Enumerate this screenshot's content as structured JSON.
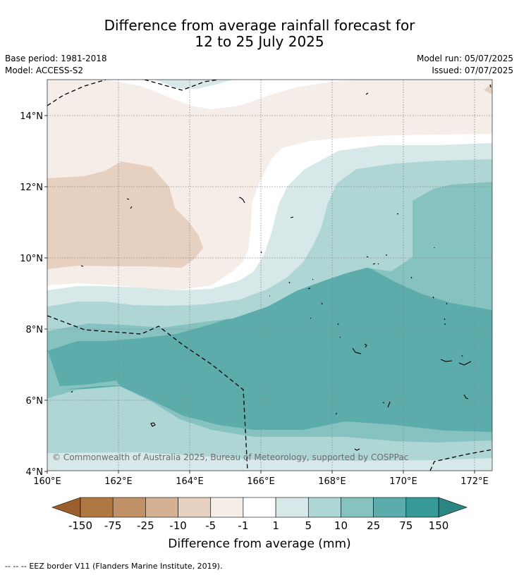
{
  "header": {
    "title_line1": "Difference from average rainfall forecast for",
    "title_line2": "12 to 25 July 2025",
    "base_period": "Base period: 1981-2018",
    "model": "Model: ACCESS-S2",
    "model_run": "Model run: 05/07/2025",
    "issued": "Issued: 07/07/2025"
  },
  "map": {
    "lon_ticks": [
      "160°E",
      "162°E",
      "164°E",
      "166°E",
      "168°E",
      "170°E",
      "172°E"
    ],
    "lat_ticks": [
      "14°N",
      "12°N",
      "10°N",
      "8°N",
      "6°N",
      "4°N"
    ],
    "copyright": "© Commonwealth of Australia 2025, Bureau of Meteorology, supported by COSPPac"
  },
  "colorbar": {
    "label": "Difference from average (mm)",
    "boundaries": [
      "-150",
      "-75",
      "-25",
      "-10",
      "-5",
      "-1",
      "1",
      "5",
      "10",
      "25",
      "75",
      "150"
    ],
    "colors": [
      "#b07841",
      "#c09166",
      "#d4b193",
      "#e6d0bf",
      "#f5ede7",
      "#ffffff",
      "#d6e9e8",
      "#aed6d5",
      "#85c2c0",
      "#5bacab",
      "#359a98"
    ],
    "under_color": "#9a5f2c",
    "over_color": "#2a8583"
  },
  "footer": {
    "legend_dash": "-- -- --",
    "legend_text": "EEZ border V11 (Flanders Marine Institute, 2019)."
  }
}
